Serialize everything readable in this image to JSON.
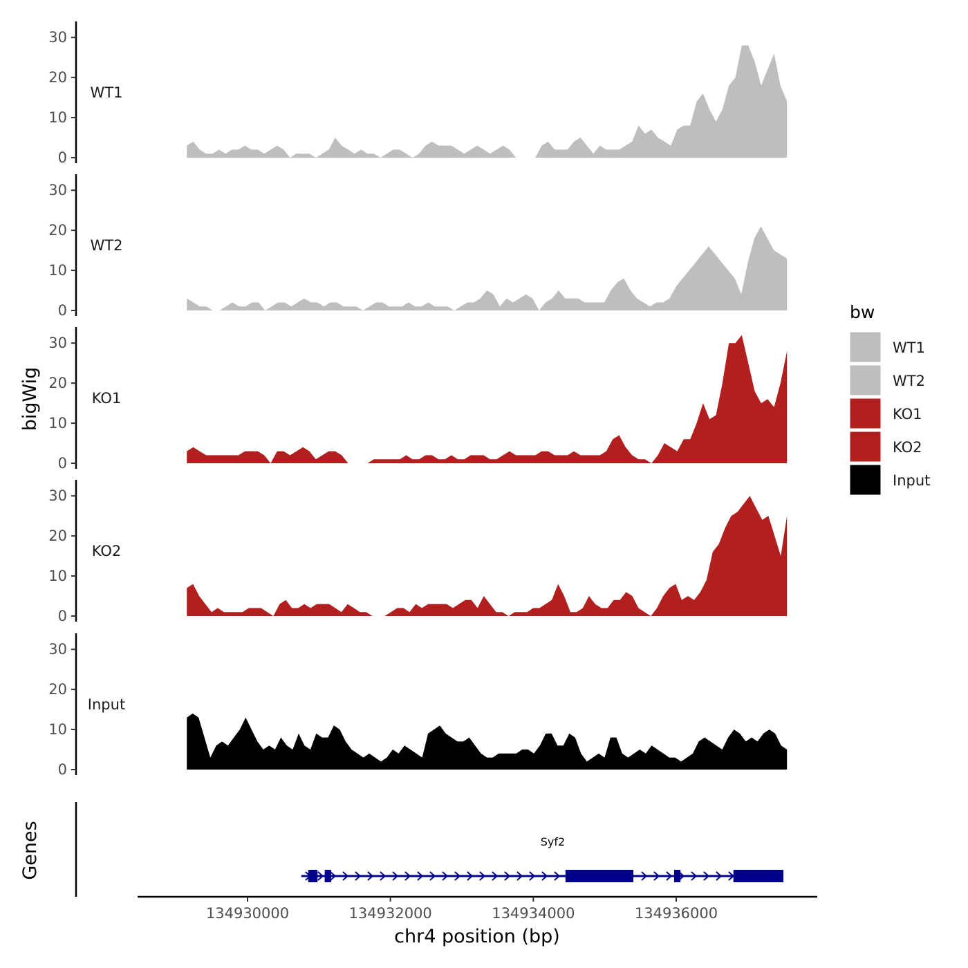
{
  "chart_data": {
    "type": "area",
    "xlabel": "chr4 position (bp)",
    "ylabel": "bigWig",
    "genes_label": "Genes",
    "ylim": [
      0,
      34
    ],
    "y_ticks": [
      0,
      10,
      20,
      30
    ],
    "x_ticks": [
      134930000,
      134932000,
      134934000,
      134936000
    ],
    "x_tick_labels": [
      "134930000",
      "134932000",
      "134934000",
      "134936000"
    ],
    "xlim": [
      134928500,
      134937800
    ],
    "legend": {
      "title": "bw",
      "position": "right",
      "items": [
        {
          "label": "WT1",
          "color": "#bebebe"
        },
        {
          "label": "WT2",
          "color": "#bebebe"
        },
        {
          "label": "KO1",
          "color": "#b21f1f"
        },
        {
          "label": "KO2",
          "color": "#b21f1f"
        },
        {
          "label": "Input",
          "color": "#000000"
        }
      ]
    },
    "series": [
      {
        "name": "WT1",
        "color": "#bebebe",
        "x_start": 134929150,
        "x_end": 134937550,
        "values": [
          3,
          4,
          2,
          1,
          1,
          2,
          1,
          2,
          2,
          3,
          2,
          2,
          1,
          2,
          3,
          2,
          0,
          1,
          1,
          1,
          0,
          1,
          2,
          5,
          3,
          2,
          1,
          2,
          1,
          1,
          0,
          1,
          2,
          2,
          1,
          0,
          1,
          3,
          4,
          3,
          3,
          3,
          2,
          1,
          2,
          3,
          2,
          1,
          2,
          3,
          2,
          0,
          0,
          0,
          0,
          3,
          4,
          2,
          2,
          2,
          4,
          5,
          3,
          1,
          3,
          2,
          2,
          2,
          3,
          4,
          8,
          6,
          7,
          5,
          4,
          3,
          7,
          8,
          8,
          14,
          16,
          12,
          9,
          12,
          18,
          20,
          28,
          28,
          24,
          18,
          22,
          26,
          18,
          14
        ]
      },
      {
        "name": "WT2",
        "color": "#bebebe",
        "x_start": 134929150,
        "x_end": 134937550,
        "values": [
          3,
          2,
          1,
          1,
          0,
          0,
          1,
          2,
          1,
          1,
          2,
          2,
          0,
          1,
          2,
          2,
          1,
          2,
          3,
          2,
          2,
          1,
          2,
          2,
          1,
          1,
          1,
          0,
          1,
          2,
          2,
          1,
          1,
          1,
          2,
          1,
          1,
          2,
          1,
          1,
          1,
          0,
          1,
          2,
          2,
          3,
          5,
          4,
          1,
          3,
          2,
          3,
          4,
          3,
          0,
          2,
          3,
          5,
          3,
          3,
          3,
          2,
          2,
          2,
          2,
          5,
          7,
          8,
          5,
          3,
          2,
          1,
          2,
          2,
          3,
          6,
          8,
          10,
          12,
          14,
          16,
          14,
          12,
          10,
          8,
          4,
          12,
          18,
          21,
          18,
          15,
          14,
          13
        ]
      },
      {
        "name": "KO1",
        "color": "#b21f1f",
        "x_start": 134929150,
        "x_end": 134937550,
        "values": [
          3,
          4,
          3,
          2,
          2,
          2,
          2,
          2,
          2,
          3,
          3,
          3,
          2,
          0,
          3,
          3,
          2,
          3,
          4,
          3,
          1,
          2,
          3,
          3,
          2,
          0,
          0,
          0,
          0,
          1,
          1,
          1,
          1,
          1,
          2,
          1,
          1,
          2,
          2,
          1,
          1,
          2,
          1,
          1,
          2,
          2,
          2,
          1,
          1,
          2,
          3,
          2,
          2,
          2,
          2,
          3,
          3,
          2,
          2,
          2,
          3,
          2,
          2,
          2,
          2,
          3,
          6,
          7,
          4,
          2,
          1,
          1,
          0,
          2,
          5,
          4,
          3,
          6,
          6,
          10,
          15,
          11,
          12,
          20,
          30,
          30,
          32,
          25,
          18,
          15,
          16,
          14,
          20,
          28
        ]
      },
      {
        "name": "KO2",
        "color": "#b21f1f",
        "x_start": 134929150,
        "x_end": 134937550,
        "values": [
          7,
          8,
          5,
          3,
          1,
          2,
          1,
          1,
          1,
          1,
          2,
          2,
          2,
          1,
          0,
          3,
          4,
          2,
          2,
          3,
          2,
          3,
          3,
          3,
          2,
          1,
          3,
          2,
          1,
          1,
          0,
          0,
          0,
          1,
          2,
          2,
          1,
          3,
          2,
          3,
          3,
          3,
          3,
          2,
          3,
          4,
          4,
          2,
          5,
          3,
          1,
          1,
          0,
          1,
          1,
          1,
          2,
          2,
          3,
          4,
          8,
          5,
          1,
          1,
          2,
          5,
          3,
          2,
          2,
          4,
          4,
          6,
          5,
          2,
          1,
          0,
          2,
          5,
          7,
          8,
          4,
          5,
          4,
          6,
          9,
          16,
          18,
          22,
          25,
          26,
          28,
          30,
          27,
          24,
          25,
          20,
          15,
          25
        ]
      },
      {
        "name": "Input",
        "color": "#000000",
        "x_start": 134929150,
        "x_end": 134937550,
        "values": [
          13,
          14,
          13,
          8,
          3,
          6,
          7,
          6,
          8,
          10,
          13,
          10,
          7,
          5,
          6,
          5,
          8,
          6,
          5,
          9,
          6,
          5,
          9,
          8,
          8,
          11,
          10,
          7,
          5,
          4,
          3,
          4,
          3,
          2,
          3,
          5,
          4,
          6,
          5,
          4,
          3,
          9,
          10,
          11,
          9,
          8,
          7,
          7,
          8,
          6,
          4,
          3,
          3,
          4,
          4,
          4,
          4,
          5,
          5,
          4,
          6,
          9,
          9,
          6,
          6,
          9,
          8,
          4,
          2,
          3,
          4,
          3,
          8,
          8,
          4,
          3,
          4,
          5,
          4,
          6,
          5,
          4,
          3,
          3,
          2,
          3,
          4,
          7,
          8,
          7,
          6,
          5,
          8,
          10,
          9,
          7,
          8,
          7,
          9,
          10,
          9,
          6,
          5
        ]
      }
    ],
    "genes": [
      {
        "name": "Syf2",
        "strand": "+",
        "start": 134930850,
        "end": 134937500,
        "exons": [
          [
            134930850,
            134930980
          ],
          [
            134931080,
            134931170
          ],
          [
            134934450,
            134934950
          ],
          [
            134934950,
            134935400
          ],
          [
            134935970,
            134936060
          ],
          [
            134936800,
            134937500
          ]
        ]
      }
    ]
  }
}
